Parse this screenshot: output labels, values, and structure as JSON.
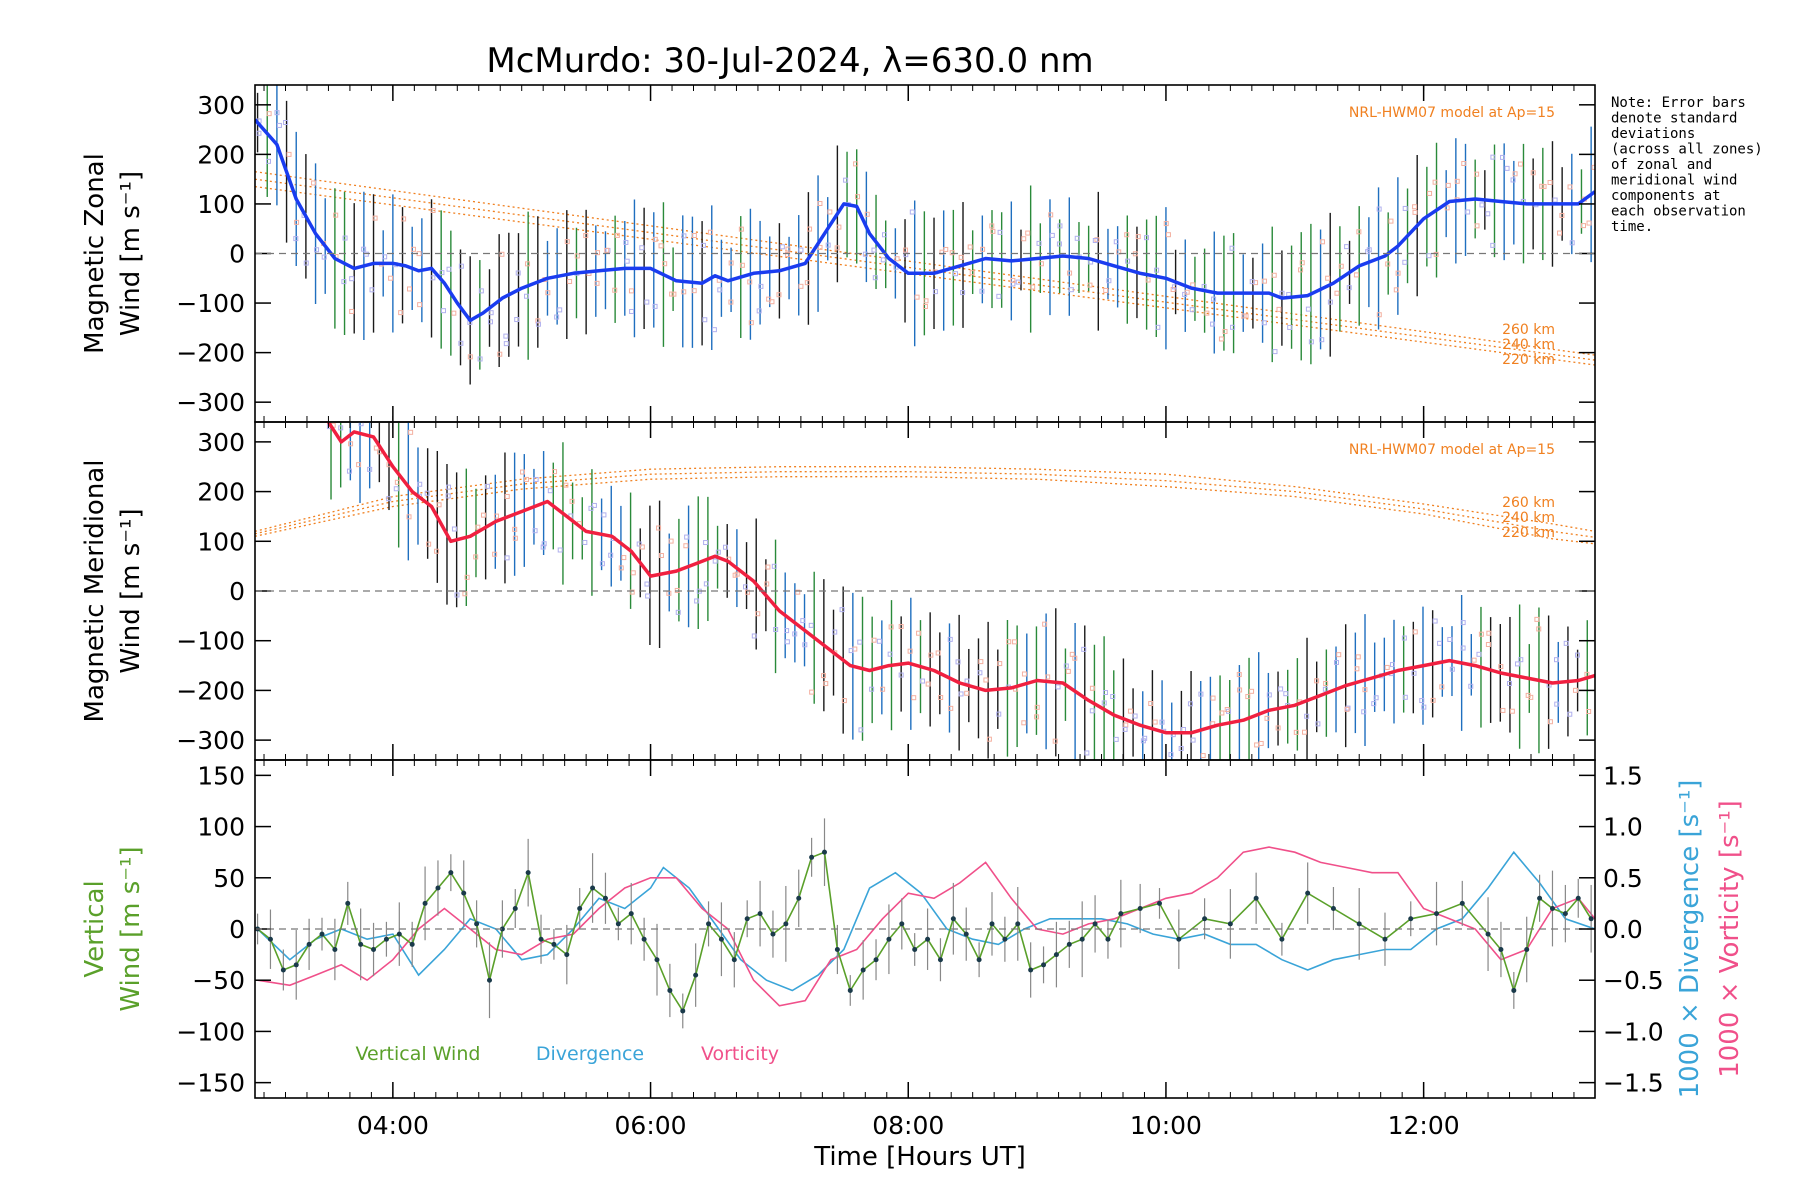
{
  "chart_data": {
    "title": "McMurdo: 30-Jul-2024, λ=630.0 nm",
    "type": "line",
    "xlabel": "Time [Hours UT]",
    "xlim": [
      2.93,
      13.33
    ],
    "xticks": [
      "04:00",
      "06:00",
      "08:00",
      "10:00",
      "12:00"
    ],
    "xtick_values": [
      4,
      6,
      8,
      10,
      12
    ],
    "note": [
      "Note: Error bars",
      "denote standard",
      "deviations",
      "(across all zones)",
      "of zonal and",
      "meridional wind",
      "components at",
      "each observation",
      "time."
    ],
    "colors": {
      "zonal": "#1a3cf0",
      "meridional": "#f02040",
      "vertical": "#5aa02a",
      "divergence": "#3aa4d8",
      "vorticity": "#f0508a",
      "model": "#f08020",
      "errorbar": "#000000"
    },
    "panels": [
      {
        "id": "zonal",
        "ylabel": [
          "Magnetic Zonal",
          "Wind [m s⁻¹]"
        ],
        "ylim": [
          -340,
          340
        ],
        "yticks": [
          -300,
          -200,
          -100,
          0,
          100,
          200,
          300
        ],
        "model_label": "NRL-HWM07 model at Ap=15",
        "model_heights": [
          "260 km",
          "240 km",
          "220 km"
        ],
        "series": [
          {
            "x": [
              2.93,
              3.1,
              3.25,
              3.4,
              3.55,
              3.7,
              3.85,
              4.0,
              4.1,
              4.2,
              4.3,
              4.4,
              4.5,
              4.6,
              4.7,
              4.85,
              5.0,
              5.2,
              5.4,
              5.6,
              5.8,
              6.0,
              6.2,
              6.4,
              6.5,
              6.6,
              6.8,
              7.0,
              7.2,
              7.4,
              7.5,
              7.6,
              7.7,
              7.85,
              8.0,
              8.2,
              8.4,
              8.6,
              8.8,
              9.0,
              9.2,
              9.4,
              9.6,
              9.8,
              10.0,
              10.2,
              10.4,
              10.6,
              10.8,
              10.9,
              11.1,
              11.3,
              11.5,
              11.7,
              11.8,
              12.0,
              12.2,
              12.4,
              12.6,
              12.8,
              13.0,
              13.2,
              13.33
            ],
            "y": [
              270,
              220,
              110,
              40,
              -10,
              -30,
              -20,
              -20,
              -25,
              -35,
              -30,
              -60,
              -100,
              -135,
              -120,
              -90,
              -70,
              -50,
              -40,
              -35,
              -30,
              -30,
              -55,
              -60,
              -45,
              -55,
              -40,
              -35,
              -20,
              60,
              100,
              95,
              40,
              -10,
              -40,
              -40,
              -25,
              -10,
              -15,
              -10,
              -5,
              -10,
              -25,
              -40,
              -50,
              -70,
              -80,
              -80,
              -80,
              -90,
              -85,
              -60,
              -25,
              -5,
              15,
              70,
              105,
              110,
              105,
              100,
              100,
              100,
              125
            ]
          }
        ],
        "model": [
          {
            "height": "260 km",
            "x": [
              2.93,
              13.33
            ],
            "y": [
              165,
              -205
            ]
          },
          {
            "height": "240 km",
            "x": [
              2.93,
              13.33
            ],
            "y": [
              150,
              -215
            ]
          },
          {
            "height": "220 km",
            "x": [
              2.93,
              13.33
            ],
            "y": [
              135,
              -225
            ]
          }
        ]
      },
      {
        "id": "meridional",
        "ylabel": [
          "Magnetic Meridional",
          "Wind [m s⁻¹]"
        ],
        "ylim": [
          -340,
          340
        ],
        "yticks": [
          -300,
          -200,
          -100,
          0,
          100,
          200,
          300
        ],
        "model_label": "NRL-HWM07 model at Ap=15",
        "model_heights": [
          "260 km",
          "240 km",
          "220 km"
        ],
        "series": [
          {
            "x": [
              3.5,
              3.6,
              3.7,
              3.85,
              4.0,
              4.15,
              4.3,
              4.45,
              4.6,
              4.8,
              5.0,
              5.2,
              5.35,
              5.5,
              5.7,
              5.85,
              6.0,
              6.2,
              6.35,
              6.5,
              6.6,
              6.8,
              7.0,
              7.2,
              7.4,
              7.55,
              7.7,
              7.85,
              8.0,
              8.2,
              8.4,
              8.6,
              8.8,
              9.0,
              9.2,
              9.4,
              9.6,
              9.8,
              10.0,
              10.2,
              10.4,
              10.6,
              10.8,
              11.0,
              11.2,
              11.4,
              11.6,
              11.8,
              12.0,
              12.2,
              12.4,
              12.6,
              12.8,
              13.0,
              13.2,
              13.33
            ],
            "y": [
              340,
              300,
              320,
              310,
              250,
              200,
              170,
              100,
              110,
              140,
              160,
              180,
              150,
              120,
              110,
              80,
              30,
              40,
              55,
              70,
              60,
              20,
              -40,
              -80,
              -120,
              -150,
              -160,
              -150,
              -145,
              -160,
              -185,
              -200,
              -195,
              -180,
              -185,
              -220,
              -250,
              -270,
              -285,
              -285,
              -270,
              -260,
              -240,
              -230,
              -210,
              -190,
              -175,
              -160,
              -150,
              -140,
              -150,
              -165,
              -175,
              -185,
              -180,
              -170
            ]
          }
        ],
        "model": [
          {
            "height": "260 km",
            "x": [
              2.93,
              4.0,
              5.0,
              6.0,
              7.0,
              8.0,
              9.0,
              10.0,
              11.0,
              12.0,
              13.0,
              13.33
            ],
            "y": [
              120,
              190,
              225,
              245,
              250,
              250,
              245,
              235,
              210,
              175,
              135,
              120
            ]
          },
          {
            "height": "240 km",
            "x": [
              2.93,
              4.0,
              5.0,
              6.0,
              7.0,
              8.0,
              9.0,
              10.0,
              11.0,
              12.0,
              13.0,
              13.33
            ],
            "y": [
              115,
              180,
              215,
              235,
              240,
              240,
              235,
              222,
              200,
              165,
              120,
              108
            ]
          },
          {
            "height": "220 km",
            "x": [
              2.93,
              4.0,
              5.0,
              6.0,
              7.0,
              8.0,
              9.0,
              10.0,
              11.0,
              12.0,
              13.0,
              13.33
            ],
            "y": [
              110,
              170,
              205,
              225,
              230,
              230,
              225,
              210,
              190,
              155,
              105,
              95
            ]
          }
        ]
      },
      {
        "id": "vertical",
        "ylabel_left": [
          "Vertical",
          "Wind [m s⁻¹]"
        ],
        "ylabel_right": [
          "1000 × Divergence [s⁻¹]",
          "1000 × Vorticity [s⁻¹]"
        ],
        "ylim": [
          -165,
          165
        ],
        "yticks": [
          -150,
          -100,
          -50,
          0,
          50,
          100,
          150
        ],
        "ylim_right": [
          -1.65,
          1.65
        ],
        "yticks_right": [
          -1.5,
          -1.0,
          -0.5,
          0.0,
          0.5,
          1.0,
          1.5
        ],
        "legend": [
          "Vertical Wind",
          "Divergence",
          "Vorticity"
        ],
        "series": [
          {
            "name": "Vertical Wind",
            "axis": "left",
            "x": [
              2.95,
              3.05,
              3.15,
              3.25,
              3.35,
              3.45,
              3.55,
              3.65,
              3.75,
              3.85,
              3.95,
              4.05,
              4.15,
              4.25,
              4.35,
              4.45,
              4.55,
              4.65,
              4.75,
              4.85,
              4.95,
              5.05,
              5.15,
              5.25,
              5.35,
              5.45,
              5.55,
              5.65,
              5.75,
              5.85,
              5.95,
              6.05,
              6.15,
              6.25,
              6.35,
              6.45,
              6.55,
              6.65,
              6.75,
              6.85,
              6.95,
              7.05,
              7.15,
              7.25,
              7.35,
              7.45,
              7.55,
              7.65,
              7.75,
              7.85,
              7.95,
              8.05,
              8.15,
              8.25,
              8.35,
              8.45,
              8.55,
              8.65,
              8.75,
              8.85,
              8.95,
              9.05,
              9.15,
              9.25,
              9.35,
              9.45,
              9.55,
              9.65,
              9.8,
              9.95,
              10.1,
              10.3,
              10.5,
              10.7,
              10.9,
              11.1,
              11.3,
              11.5,
              11.7,
              11.9,
              12.1,
              12.3,
              12.5,
              12.6,
              12.7,
              12.8,
              12.9,
              13.0,
              13.1,
              13.2,
              13.3
            ],
            "y": [
              0,
              -10,
              -40,
              -35,
              -15,
              -5,
              -20,
              25,
              -15,
              -20,
              -10,
              -5,
              -15,
              25,
              40,
              55,
              35,
              5,
              -50,
              0,
              20,
              55,
              -10,
              -15,
              -25,
              20,
              40,
              30,
              5,
              15,
              -10,
              -30,
              -60,
              -80,
              -45,
              5,
              -10,
              -30,
              10,
              15,
              -5,
              5,
              30,
              70,
              75,
              -20,
              -60,
              -40,
              -30,
              -10,
              5,
              -20,
              -10,
              -30,
              10,
              -5,
              -30,
              5,
              -10,
              5,
              -40,
              -35,
              -25,
              -15,
              -10,
              5,
              -10,
              15,
              20,
              25,
              -10,
              10,
              5,
              30,
              -10,
              35,
              20,
              5,
              -10,
              10,
              15,
              25,
              -5,
              -20,
              -60,
              -20,
              30,
              20,
              15,
              30,
              10
            ]
          },
          {
            "name": "Divergence",
            "axis": "right",
            "x": [
              2.95,
              3.2,
              3.4,
              3.6,
              3.8,
              4.0,
              4.2,
              4.4,
              4.6,
              4.8,
              5.0,
              5.2,
              5.4,
              5.6,
              5.8,
              6.0,
              6.1,
              6.3,
              6.5,
              6.7,
              6.9,
              7.1,
              7.3,
              7.5,
              7.7,
              7.9,
              8.1,
              8.3,
              8.5,
              8.7,
              8.9,
              9.1,
              9.3,
              9.5,
              9.7,
              9.9,
              10.1,
              10.3,
              10.5,
              10.7,
              10.9,
              11.1,
              11.3,
              11.5,
              11.7,
              11.9,
              12.1,
              12.3,
              12.5,
              12.7,
              12.9,
              13.1,
              13.33
            ],
            "y": [
              0.0,
              -0.3,
              -0.1,
              0.0,
              -0.1,
              -0.05,
              -0.45,
              -0.2,
              0.1,
              0.0,
              -0.3,
              -0.25,
              0.0,
              0.3,
              0.2,
              0.4,
              0.6,
              0.4,
              0.05,
              -0.3,
              -0.5,
              -0.6,
              -0.45,
              -0.2,
              0.4,
              0.55,
              0.35,
              0.0,
              -0.1,
              -0.15,
              0.0,
              0.1,
              0.1,
              0.1,
              0.05,
              -0.05,
              -0.1,
              -0.05,
              -0.15,
              -0.15,
              -0.3,
              -0.4,
              -0.3,
              -0.25,
              -0.2,
              -0.2,
              0.0,
              0.1,
              0.4,
              0.75,
              0.45,
              0.1,
              0.0
            ]
          },
          {
            "name": "Vorticity",
            "axis": "right",
            "x": [
              2.95,
              3.2,
              3.4,
              3.6,
              3.8,
              4.0,
              4.2,
              4.4,
              4.6,
              4.8,
              5.0,
              5.2,
              5.4,
              5.6,
              5.8,
              6.0,
              6.2,
              6.4,
              6.6,
              6.8,
              7.0,
              7.2,
              7.4,
              7.6,
              7.8,
              8.0,
              8.2,
              8.4,
              8.6,
              8.8,
              9.0,
              9.2,
              9.4,
              9.6,
              9.8,
              10.0,
              10.2,
              10.4,
              10.6,
              10.8,
              11.0,
              11.2,
              11.4,
              11.6,
              11.8,
              12.0,
              12.2,
              12.4,
              12.6,
              12.8,
              13.0,
              13.2,
              13.33
            ],
            "y": [
              -0.5,
              -0.55,
              -0.45,
              -0.35,
              -0.5,
              -0.3,
              0.0,
              0.2,
              0.0,
              -0.2,
              -0.25,
              -0.1,
              -0.05,
              0.2,
              0.4,
              0.5,
              0.5,
              0.2,
              0.0,
              -0.5,
              -0.75,
              -0.7,
              -0.3,
              -0.2,
              0.1,
              0.35,
              0.3,
              0.45,
              0.65,
              0.3,
              0.0,
              -0.05,
              0.05,
              0.1,
              0.2,
              0.3,
              0.35,
              0.5,
              0.75,
              0.8,
              0.75,
              0.65,
              0.6,
              0.55,
              0.55,
              0.2,
              0.1,
              0.0,
              -0.3,
              -0.2,
              0.2,
              0.3,
              0.1
            ]
          }
        ]
      }
    ]
  }
}
